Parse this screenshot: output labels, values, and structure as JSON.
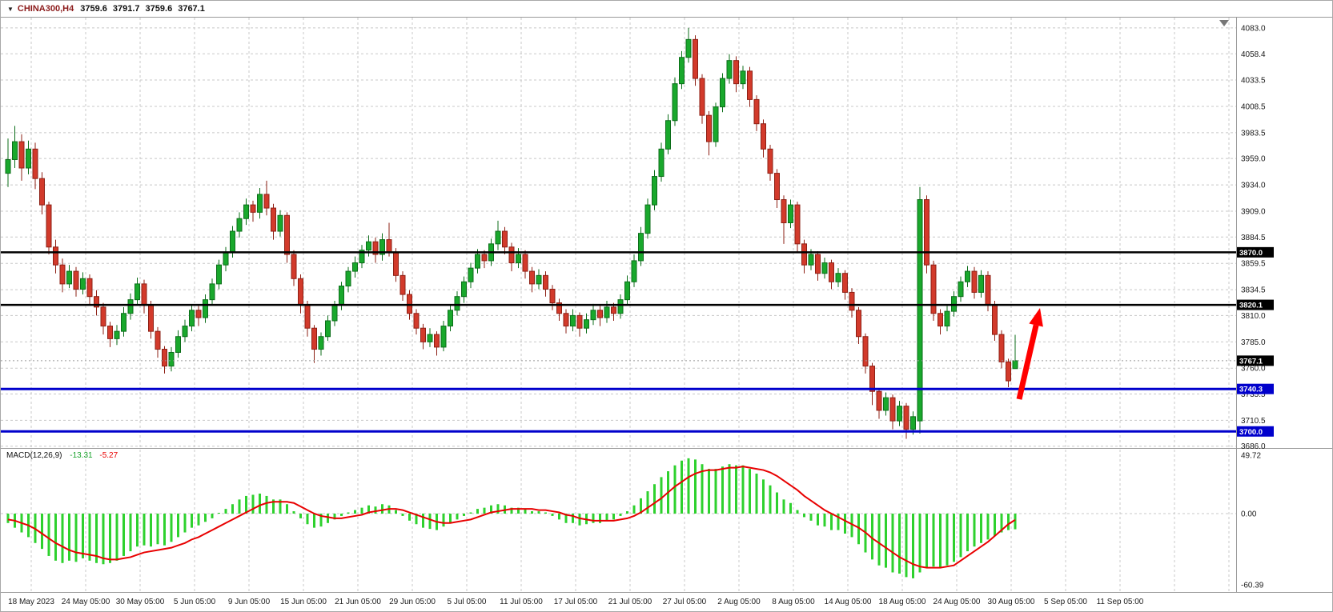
{
  "title_bar": {
    "dropdown_icon": "▼",
    "symbol": "CHINA300,H4",
    "open": "3759.6",
    "high": "3791.7",
    "low": "3759.6",
    "close": "3767.1"
  },
  "colors": {
    "background": "#ffffff",
    "grid": "#c8c8c8",
    "bull": "#19a82c",
    "bull_border": "#0c6e1a",
    "bear": "#d23a2b",
    "bear_border": "#8e2015",
    "macd_histogram": "#2ed12e",
    "macd_signal": "#e80000",
    "level_black": "#000000",
    "level_blue": "#0000cc",
    "tag_text": "#ffffff",
    "arrow": "#ff0000",
    "axis_text": "#1a1a1a",
    "separator": "#9a9a9a"
  },
  "chart_data": {
    "type": "candlestick",
    "symbol": "CHINA300",
    "period": "H4",
    "y_ticks": [
      4083.0,
      4058.4,
      4033.5,
      4008.5,
      3983.5,
      3959.0,
      3934.0,
      3909.0,
      3884.5,
      3859.5,
      3834.5,
      3810.0,
      3785.0,
      3760.0,
      3735.5,
      3710.5,
      3686.0
    ],
    "x_labels": [
      "18 May 2023",
      "24 May 05:00",
      "30 May 05:00",
      "5 Jun 05:00",
      "9 Jun 05:00",
      "15 Jun 05:00",
      "21 Jun 05:00",
      "29 Jun 05:00",
      "5 Jul 05:00",
      "11 Jul 05:00",
      "17 Jul 05:00",
      "21 Jul 05:00",
      "27 Jul 05:00",
      "2 Aug 05:00",
      "8 Aug 05:00",
      "14 Aug 05:00",
      "18 Aug 05:00",
      "24 Aug 05:00",
      "30 Aug 05:00",
      "5 Sep 05:00",
      "11 Sep 05:00"
    ],
    "candles": [
      [
        3945,
        3978,
        3932,
        3958
      ],
      [
        3958,
        3990,
        3950,
        3975
      ],
      [
        3975,
        3982,
        3938,
        3950
      ],
      [
        3950,
        3976,
        3944,
        3968
      ],
      [
        3968,
        3974,
        3930,
        3940
      ],
      [
        3940,
        3946,
        3906,
        3915
      ],
      [
        3915,
        3918,
        3868,
        3875
      ],
      [
        3875,
        3882,
        3850,
        3858
      ],
      [
        3858,
        3864,
        3832,
        3840
      ],
      [
        3840,
        3858,
        3836,
        3852
      ],
      [
        3852,
        3856,
        3828,
        3835
      ],
      [
        3835,
        3851,
        3830,
        3845
      ],
      [
        3845,
        3849,
        3820,
        3828
      ],
      [
        3828,
        3834,
        3810,
        3818
      ],
      [
        3818,
        3822,
        3792,
        3800
      ],
      [
        3800,
        3804,
        3780,
        3788
      ],
      [
        3788,
        3801,
        3782,
        3795
      ],
      [
        3795,
        3818,
        3790,
        3812
      ],
      [
        3812,
        3831,
        3806,
        3825
      ],
      [
        3825,
        3846,
        3820,
        3840
      ],
      [
        3840,
        3844,
        3812,
        3820
      ],
      [
        3820,
        3824,
        3788,
        3795
      ],
      [
        3795,
        3799,
        3770,
        3778
      ],
      [
        3778,
        3781,
        3755,
        3762
      ],
      [
        3762,
        3780,
        3757,
        3775
      ],
      [
        3775,
        3796,
        3770,
        3790
      ],
      [
        3790,
        3806,
        3785,
        3800
      ],
      [
        3800,
        3820,
        3795,
        3815
      ],
      [
        3815,
        3819,
        3800,
        3808
      ],
      [
        3808,
        3830,
        3803,
        3825
      ],
      [
        3825,
        3845,
        3820,
        3840
      ],
      [
        3840,
        3863,
        3835,
        3858
      ],
      [
        3858,
        3875,
        3852,
        3870
      ],
      [
        3870,
        3895,
        3865,
        3890
      ],
      [
        3890,
        3908,
        3884,
        3902
      ],
      [
        3902,
        3921,
        3896,
        3915
      ],
      [
        3915,
        3919,
        3899,
        3908
      ],
      [
        3908,
        3931,
        3902,
        3925
      ],
      [
        3925,
        3938,
        3905,
        3912
      ],
      [
        3912,
        3916,
        3882,
        3890
      ],
      [
        3890,
        3910,
        3885,
        3905
      ],
      [
        3905,
        3908,
        3860,
        3868
      ],
      [
        3868,
        3872,
        3838,
        3845
      ],
      [
        3845,
        3849,
        3812,
        3820
      ],
      [
        3820,
        3824,
        3790,
        3798
      ],
      [
        3798,
        3801,
        3765,
        3778
      ],
      [
        3778,
        3794,
        3772,
        3790
      ],
      [
        3790,
        3810,
        3786,
        3805
      ],
      [
        3805,
        3824,
        3800,
        3820
      ],
      [
        3820,
        3842,
        3815,
        3838
      ],
      [
        3838,
        3856,
        3832,
        3852
      ],
      [
        3852,
        3866,
        3846,
        3860
      ],
      [
        3860,
        3877,
        3855,
        3872
      ],
      [
        3872,
        3886,
        3866,
        3880
      ],
      [
        3880,
        3884,
        3860,
        3868
      ],
      [
        3868,
        3888,
        3862,
        3882
      ],
      [
        3882,
        3898,
        3866,
        3870
      ],
      [
        3870,
        3874,
        3842,
        3848
      ],
      [
        3848,
        3852,
        3824,
        3830
      ],
      [
        3830,
        3834,
        3806,
        3812
      ],
      [
        3812,
        3816,
        3792,
        3798
      ],
      [
        3798,
        3802,
        3778,
        3785
      ],
      [
        3785,
        3798,
        3780,
        3792
      ],
      [
        3792,
        3795,
        3772,
        3780
      ],
      [
        3780,
        3805,
        3776,
        3800
      ],
      [
        3800,
        3820,
        3795,
        3815
      ],
      [
        3815,
        3833,
        3810,
        3828
      ],
      [
        3828,
        3847,
        3822,
        3842
      ],
      [
        3842,
        3860,
        3836,
        3855
      ],
      [
        3855,
        3873,
        3850,
        3868
      ],
      [
        3868,
        3872,
        3855,
        3862
      ],
      [
        3862,
        3883,
        3857,
        3878
      ],
      [
        3878,
        3900,
        3872,
        3890
      ],
      [
        3890,
        3894,
        3868,
        3875
      ],
      [
        3875,
        3879,
        3852,
        3860
      ],
      [
        3860,
        3874,
        3855,
        3868
      ],
      [
        3868,
        3872,
        3845,
        3852
      ],
      [
        3852,
        3856,
        3832,
        3840
      ],
      [
        3840,
        3854,
        3835,
        3848
      ],
      [
        3848,
        3852,
        3828,
        3835
      ],
      [
        3835,
        3839,
        3815,
        3822
      ],
      [
        3822,
        3826,
        3805,
        3812
      ],
      [
        3812,
        3816,
        3793,
        3800
      ],
      [
        3800,
        3816,
        3795,
        3810
      ],
      [
        3810,
        3813,
        3790,
        3798
      ],
      [
        3798,
        3812,
        3793,
        3806
      ],
      [
        3806,
        3821,
        3801,
        3815
      ],
      [
        3815,
        3819,
        3800,
        3808
      ],
      [
        3808,
        3824,
        3803,
        3818
      ],
      [
        3818,
        3822,
        3805,
        3812
      ],
      [
        3812,
        3830,
        3807,
        3825
      ],
      [
        3825,
        3848,
        3820,
        3842
      ],
      [
        3842,
        3868,
        3837,
        3862
      ],
      [
        3862,
        3894,
        3857,
        3888
      ],
      [
        3888,
        3921,
        3883,
        3915
      ],
      [
        3915,
        3948,
        3910,
        3942
      ],
      [
        3942,
        3974,
        3937,
        3968
      ],
      [
        3968,
        4001,
        3963,
        3995
      ],
      [
        3995,
        4036,
        3990,
        4030
      ],
      [
        4030,
        4061,
        4025,
        4055
      ],
      [
        4055,
        4083,
        4050,
        4072
      ],
      [
        4072,
        4076,
        4028,
        4035
      ],
      [
        4035,
        4039,
        3992,
        4000
      ],
      [
        4000,
        4004,
        3962,
        3975
      ],
      [
        3975,
        4012,
        3970,
        4008
      ],
      [
        4008,
        4040,
        4003,
        4035
      ],
      [
        4035,
        4058,
        4030,
        4052
      ],
      [
        4052,
        4056,
        4022,
        4030
      ],
      [
        4030,
        4047,
        4025,
        4042
      ],
      [
        4042,
        4046,
        4008,
        4015
      ],
      [
        4015,
        4019,
        3985,
        3992
      ],
      [
        3992,
        3996,
        3960,
        3968
      ],
      [
        3968,
        3972,
        3938,
        3945
      ],
      [
        3945,
        3949,
        3912,
        3920
      ],
      [
        3920,
        3924,
        3878,
        3898
      ],
      [
        3898,
        3920,
        3893,
        3915
      ],
      [
        3915,
        3918,
        3870,
        3878
      ],
      [
        3878,
        3882,
        3850,
        3858
      ],
      [
        3858,
        3873,
        3853,
        3868
      ],
      [
        3868,
        3871,
        3843,
        3850
      ],
      [
        3850,
        3865,
        3845,
        3860
      ],
      [
        3860,
        3863,
        3835,
        3842
      ],
      [
        3842,
        3855,
        3837,
        3850
      ],
      [
        3850,
        3853,
        3825,
        3832
      ],
      [
        3832,
        3836,
        3808,
        3815
      ],
      [
        3815,
        3818,
        3783,
        3790
      ],
      [
        3790,
        3793,
        3755,
        3762
      ],
      [
        3762,
        3765,
        3725,
        3738
      ],
      [
        3738,
        3741,
        3712,
        3720
      ],
      [
        3720,
        3737,
        3715,
        3732
      ],
      [
        3732,
        3735,
        3702,
        3710
      ],
      [
        3710,
        3729,
        3705,
        3724
      ],
      [
        3724,
        3727,
        3693,
        3702
      ],
      [
        3702,
        3719,
        3697,
        3714
      ],
      [
        3710,
        3932,
        3698,
        3920
      ],
      [
        3920,
        3924,
        3850,
        3858
      ],
      [
        3858,
        3862,
        3805,
        3812
      ],
      [
        3812,
        3816,
        3792,
        3800
      ],
      [
        3800,
        3819,
        3795,
        3814
      ],
      [
        3814,
        3833,
        3809,
        3828
      ],
      [
        3828,
        3847,
        3823,
        3842
      ],
      [
        3842,
        3857,
        3837,
        3852
      ],
      [
        3852,
        3856,
        3826,
        3832
      ],
      [
        3832,
        3853,
        3827,
        3848
      ],
      [
        3848,
        3852,
        3814,
        3820
      ],
      [
        3820,
        3824,
        3786,
        3792
      ],
      [
        3792,
        3796,
        3760,
        3766
      ],
      [
        3766,
        3769,
        3742,
        3748
      ],
      [
        3759.6,
        3791.7,
        3759.6,
        3767.1
      ]
    ],
    "levels": [
      {
        "value": 3870.0,
        "color": "black"
      },
      {
        "value": 3820.1,
        "color": "black"
      },
      {
        "value": 3740.3,
        "color": "blue"
      },
      {
        "value": 3700.0,
        "color": "blue"
      }
    ],
    "current_price": 3767.1,
    "macd": {
      "label": "MACD(12,26,9)",
      "value_main": "-13.31",
      "value_signal": "-5.27",
      "y_ticks": [
        49.72,
        0,
        -60.39
      ],
      "histogram": [
        -8,
        -12,
        -16,
        -20,
        -25,
        -30,
        -36,
        -40,
        -42,
        -40,
        -41,
        -38,
        -40,
        -42,
        -43,
        -42,
        -40,
        -36,
        -32,
        -28,
        -27,
        -28,
        -26,
        -27,
        -24,
        -20,
        -16,
        -12,
        -10,
        -7,
        -4,
        0,
        4,
        8,
        12,
        15,
        16,
        17,
        15,
        12,
        12,
        8,
        2,
        -4,
        -9,
        -12,
        -11,
        -8,
        -5,
        -2,
        1,
        3,
        5,
        7,
        6,
        8,
        7,
        3,
        -2,
        -6,
        -9,
        -12,
        -13,
        -14,
        -11,
        -8,
        -5,
        -2,
        1,
        4,
        5,
        7,
        8,
        7,
        5,
        5,
        4,
        2,
        2,
        1,
        -2,
        -5,
        -8,
        -8,
        -10,
        -9,
        -8,
        -8,
        -6,
        -5,
        -2,
        2,
        7,
        13,
        19,
        25,
        31,
        36,
        41,
        45,
        47,
        46,
        42,
        38,
        38,
        40,
        42,
        41,
        41,
        38,
        34,
        29,
        24,
        18,
        12,
        9,
        3,
        -3,
        -6,
        -10,
        -11,
        -14,
        -14,
        -17,
        -20,
        -26,
        -33,
        -39,
        -44,
        -46,
        -50,
        -51,
        -54,
        -55,
        -50,
        -46,
        -45,
        -46,
        -44,
        -41,
        -37,
        -32,
        -28,
        -25,
        -22,
        -19,
        -16,
        -14,
        -13.31
      ],
      "signal": [
        -5,
        -6,
        -8,
        -10,
        -13,
        -17,
        -21,
        -25,
        -28,
        -31,
        -33,
        -34,
        -35,
        -36,
        -38,
        -39,
        -39,
        -38,
        -37,
        -35,
        -33,
        -32,
        -31,
        -30,
        -29,
        -27,
        -25,
        -22,
        -20,
        -17,
        -14,
        -11,
        -8,
        -5,
        -2,
        1,
        4,
        7,
        9,
        10,
        10,
        10,
        9,
        6,
        3,
        0,
        -2,
        -3,
        -4,
        -4,
        -3,
        -2,
        -1,
        1,
        2,
        3,
        4,
        4,
        3,
        1,
        -1,
        -3,
        -5,
        -7,
        -8,
        -8,
        -7,
        -6,
        -5,
        -3,
        -1,
        1,
        2,
        3,
        4,
        4,
        4,
        4,
        3,
        3,
        2,
        1,
        -1,
        -2,
        -4,
        -5,
        -6,
        -6,
        -6,
        -6,
        -5,
        -4,
        -2,
        1,
        5,
        9,
        13,
        18,
        23,
        27,
        31,
        34,
        36,
        37,
        37,
        38,
        39,
        39,
        40,
        39,
        38,
        37,
        35,
        32,
        28,
        24,
        20,
        15,
        11,
        7,
        3,
        0,
        -3,
        -6,
        -9,
        -12,
        -16,
        -21,
        -25,
        -29,
        -33,
        -37,
        -40,
        -43,
        -45,
        -46,
        -46,
        -46,
        -45,
        -44,
        -40,
        -36,
        -32,
        -28,
        -24,
        -19,
        -14,
        -9,
        -5.27
      ]
    },
    "arrow": {
      "from": [
        1272,
        498
      ],
      "to": [
        1298,
        384
      ]
    }
  }
}
